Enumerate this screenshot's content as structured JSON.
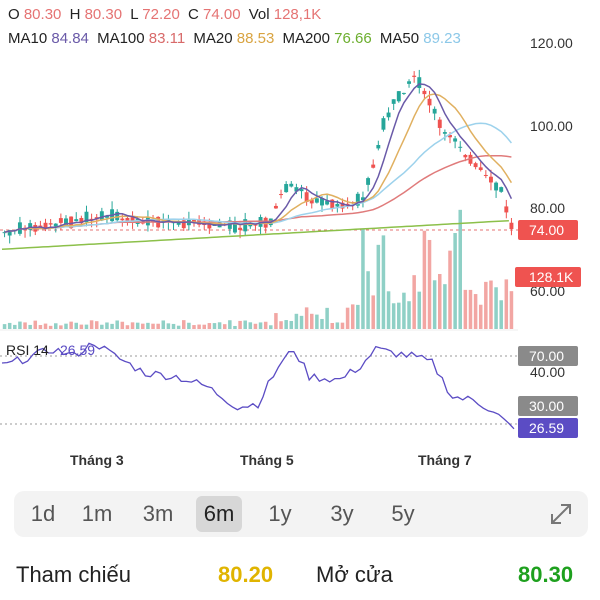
{
  "ohlc": {
    "o_label": "O",
    "o": "80.30",
    "h_label": "H",
    "h": "80.30",
    "l_label": "L",
    "l": "72.20",
    "c_label": "C",
    "c": "74.00",
    "vol_label": "Vol",
    "vol": "128,1K"
  },
  "ma": {
    "ma10_label": "MA10",
    "ma10": "84.84",
    "ma100_label": "MA100",
    "ma100": "83.11",
    "ma20_label": "MA20",
    "ma20": "88.53",
    "ma200_label": "MA200",
    "ma200": "76.66",
    "ma50_label": "MA50",
    "ma50": "89.23"
  },
  "price_axis": [
    "120.00",
    "100.00",
    "80.00",
    "60.00"
  ],
  "price_tag": "74.00",
  "vol_tag": "128.1K",
  "rsi": {
    "label": "RSI 14",
    "value": "26.59",
    "axis_40": "40.00",
    "tag_70": "70.00",
    "tag_30": "30.00",
    "tag_value": "26.59"
  },
  "x_labels": [
    "Tháng 3",
    "Tháng 5",
    "Tháng 7"
  ],
  "timeframes": [
    "1d",
    "1m",
    "3m",
    "6m",
    "1y",
    "3y",
    "5y"
  ],
  "active_timeframe": "6m",
  "footer": {
    "ref_label": "Tham chiếu",
    "ref_value": "80.20",
    "open_label": "Mở cửa",
    "open_value": "80.30"
  },
  "colors": {
    "up": "#26a69a",
    "down": "#ef5350",
    "vol_up": "#8fd0c6",
    "vol_down": "#f2a6a3",
    "ma10": "#6a5aa8",
    "ma20": "#e0b060",
    "ma50": "#9dd2ec",
    "ma100": "#e07b7b",
    "ma200": "#8cc04a",
    "rsi": "#5b4cc4",
    "ref": "#e0b400",
    "open": "#1ea01e"
  }
}
